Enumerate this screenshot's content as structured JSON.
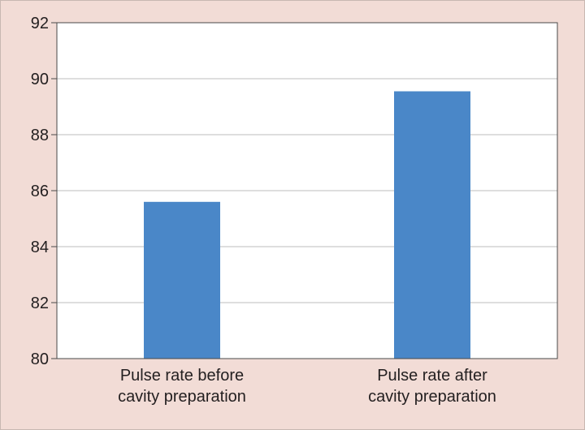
{
  "colors": {
    "background": "#f2dcd6",
    "plot_background": "#ffffff",
    "bar": "#4a87c8",
    "grid": "#bdbdbd",
    "axis": "#4a4a4a",
    "text": "#231f20"
  },
  "chart_data": {
    "type": "bar",
    "categories": [
      [
        "Pulse rate before",
        "cavity preparation"
      ],
      [
        "Pulse rate after",
        "cavity preparation"
      ]
    ],
    "values": [
      85.6,
      89.55
    ],
    "title": "",
    "xlabel": "",
    "ylabel": "",
    "ylim": [
      80,
      92
    ],
    "yticks": [
      80,
      82,
      84,
      86,
      88,
      90,
      92
    ],
    "grid": true,
    "legend": "none"
  }
}
